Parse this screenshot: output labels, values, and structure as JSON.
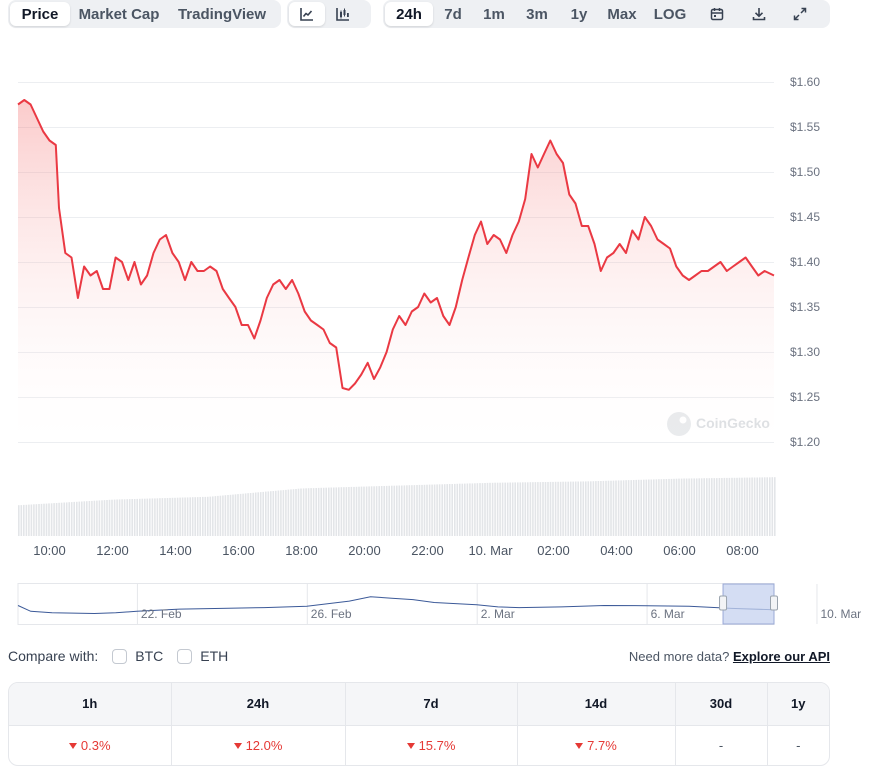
{
  "toolbar": {
    "metric_tabs": [
      "Price",
      "Market Cap",
      "TradingView"
    ],
    "range_tabs": [
      "24h",
      "7d",
      "1m",
      "3m",
      "1y",
      "Max",
      "LOG"
    ],
    "active_metric": "Price",
    "active_range": "24h",
    "chart_type_icons": [
      "line-chart-icon",
      "candlestick-icon"
    ],
    "tool_icons": [
      "calendar-icon",
      "download-icon",
      "expand-icon"
    ]
  },
  "watermark": "CoinGecko",
  "colors": {
    "line": "#ea3943",
    "accent_down": "#e53935",
    "navigator": "#3b5998"
  },
  "chart_data": {
    "type": "area",
    "y_ticks": [
      "$1.60",
      "$1.55",
      "$1.50",
      "$1.45",
      "$1.40",
      "$1.35",
      "$1.30",
      "$1.25",
      "$1.20"
    ],
    "ylim": [
      1.2,
      1.6
    ],
    "x_ticks": [
      "10:00",
      "12:00",
      "14:00",
      "16:00",
      "18:00",
      "20:00",
      "22:00",
      "10. Mar",
      "02:00",
      "04:00",
      "06:00",
      "08:00"
    ],
    "xlim_hours": [
      9.0,
      33.0
    ],
    "x_unit": "hours since 00:00 on 9 Mar",
    "series": [
      {
        "points": [
          [
            9.0,
            1.575
          ],
          [
            9.2,
            1.58
          ],
          [
            9.4,
            1.575
          ],
          [
            9.6,
            1.56
          ],
          [
            9.8,
            1.545
          ],
          [
            10.0,
            1.535
          ],
          [
            10.2,
            1.53
          ],
          [
            10.3,
            1.46
          ],
          [
            10.5,
            1.41
          ],
          [
            10.7,
            1.405
          ],
          [
            10.9,
            1.36
          ],
          [
            11.1,
            1.395
          ],
          [
            11.3,
            1.385
          ],
          [
            11.5,
            1.39
          ],
          [
            11.7,
            1.37
          ],
          [
            11.9,
            1.37
          ],
          [
            12.1,
            1.405
          ],
          [
            12.3,
            1.4
          ],
          [
            12.5,
            1.38
          ],
          [
            12.7,
            1.4
          ],
          [
            12.9,
            1.375
          ],
          [
            13.1,
            1.385
          ],
          [
            13.3,
            1.41
          ],
          [
            13.5,
            1.425
          ],
          [
            13.7,
            1.43
          ],
          [
            13.9,
            1.41
          ],
          [
            14.1,
            1.4
          ],
          [
            14.3,
            1.38
          ],
          [
            14.5,
            1.4
          ],
          [
            14.7,
            1.39
          ],
          [
            14.9,
            1.39
          ],
          [
            15.1,
            1.395
          ],
          [
            15.3,
            1.39
          ],
          [
            15.5,
            1.37
          ],
          [
            15.7,
            1.36
          ],
          [
            15.9,
            1.35
          ],
          [
            16.1,
            1.33
          ],
          [
            16.3,
            1.33
          ],
          [
            16.5,
            1.315
          ],
          [
            16.7,
            1.335
          ],
          [
            16.9,
            1.36
          ],
          [
            17.1,
            1.375
          ],
          [
            17.3,
            1.38
          ],
          [
            17.5,
            1.37
          ],
          [
            17.7,
            1.38
          ],
          [
            17.9,
            1.365
          ],
          [
            18.1,
            1.345
          ],
          [
            18.3,
            1.335
          ],
          [
            18.5,
            1.33
          ],
          [
            18.7,
            1.325
          ],
          [
            18.9,
            1.31
          ],
          [
            19.1,
            1.305
          ],
          [
            19.3,
            1.26
          ],
          [
            19.5,
            1.258
          ],
          [
            19.7,
            1.265
          ],
          [
            19.9,
            1.275
          ],
          [
            20.1,
            1.288
          ],
          [
            20.3,
            1.27
          ],
          [
            20.5,
            1.283
          ],
          [
            20.7,
            1.3
          ],
          [
            20.9,
            1.325
          ],
          [
            21.1,
            1.34
          ],
          [
            21.3,
            1.33
          ],
          [
            21.5,
            1.345
          ],
          [
            21.7,
            1.35
          ],
          [
            21.9,
            1.365
          ],
          [
            22.1,
            1.355
          ],
          [
            22.3,
            1.36
          ],
          [
            22.5,
            1.34
          ],
          [
            22.7,
            1.33
          ],
          [
            22.9,
            1.35
          ],
          [
            23.1,
            1.38
          ],
          [
            23.3,
            1.405
          ],
          [
            23.5,
            1.43
          ],
          [
            23.7,
            1.445
          ],
          [
            23.9,
            1.42
          ],
          [
            24.1,
            1.43
          ],
          [
            24.3,
            1.425
          ],
          [
            24.5,
            1.41
          ],
          [
            24.7,
            1.43
          ],
          [
            24.9,
            1.445
          ],
          [
            25.1,
            1.47
          ],
          [
            25.3,
            1.52
          ],
          [
            25.5,
            1.505
          ],
          [
            25.7,
            1.52
          ],
          [
            25.9,
            1.535
          ],
          [
            26.1,
            1.52
          ],
          [
            26.3,
            1.51
          ],
          [
            26.5,
            1.475
          ],
          [
            26.7,
            1.465
          ],
          [
            26.9,
            1.44
          ],
          [
            27.1,
            1.44
          ],
          [
            27.3,
            1.42
          ],
          [
            27.5,
            1.39
          ],
          [
            27.7,
            1.405
          ],
          [
            27.9,
            1.41
          ],
          [
            28.1,
            1.42
          ],
          [
            28.3,
            1.41
          ],
          [
            28.5,
            1.435
          ],
          [
            28.7,
            1.425
          ],
          [
            28.9,
            1.45
          ],
          [
            29.1,
            1.44
          ],
          [
            29.3,
            1.425
          ],
          [
            29.5,
            1.42
          ],
          [
            29.7,
            1.415
          ],
          [
            29.9,
            1.395
          ],
          [
            30.1,
            1.385
          ],
          [
            30.3,
            1.38
          ],
          [
            30.5,
            1.385
          ],
          [
            30.7,
            1.39
          ],
          [
            30.9,
            1.39
          ],
          [
            31.1,
            1.395
          ],
          [
            31.3,
            1.4
          ],
          [
            31.5,
            1.39
          ],
          [
            31.7,
            1.395
          ],
          [
            31.9,
            1.4
          ],
          [
            32.1,
            1.405
          ],
          [
            32.3,
            1.395
          ],
          [
            32.5,
            1.385
          ],
          [
            32.7,
            1.39
          ],
          [
            33.0,
            1.385
          ]
        ]
      }
    ],
    "volume": {
      "x": [
        9.0,
        12.0,
        15.0,
        18.0,
        21.0,
        24.0,
        27.0,
        30.0,
        33.0
      ],
      "values": [
        22,
        26,
        28,
        34,
        36,
        38,
        39,
        41,
        42
      ]
    },
    "navigator": {
      "x_ticks": [
        "22. Feb",
        "26. Feb",
        "2. Mar",
        "6. Mar",
        "10. Mar"
      ],
      "xlim_days": [
        -1.8,
        16.0
      ],
      "x_unit": "days since 21 Feb",
      "points": [
        [
          -1.8,
          1.38
        ],
        [
          -1.5,
          1.34
        ],
        [
          -1.0,
          1.33
        ],
        [
          0.0,
          1.325
        ],
        [
          0.5,
          1.33
        ],
        [
          1.0,
          1.34
        ],
        [
          2.0,
          1.355
        ],
        [
          3.0,
          1.36
        ],
        [
          4.0,
          1.365
        ],
        [
          5.0,
          1.375
        ],
        [
          6.0,
          1.41
        ],
        [
          6.5,
          1.44
        ],
        [
          7.0,
          1.43
        ],
        [
          7.5,
          1.42
        ],
        [
          8.0,
          1.4
        ],
        [
          9.0,
          1.385
        ],
        [
          9.5,
          1.37
        ],
        [
          10.0,
          1.365
        ],
        [
          11.0,
          1.37
        ],
        [
          12.0,
          1.38
        ],
        [
          13.0,
          1.378
        ],
        [
          14.0,
          1.375
        ],
        [
          15.0,
          1.36
        ],
        [
          16.0,
          1.35
        ]
      ],
      "ylim": [
        1.28,
        1.5
      ],
      "selection_days": [
        14.8,
        16.0
      ]
    }
  },
  "compare": {
    "label": "Compare with:",
    "options": [
      "BTC",
      "ETH"
    ],
    "more_text": "Need more data?",
    "more_link": "Explore our API"
  },
  "changes": {
    "headers": [
      "1h",
      "24h",
      "7d",
      "14d",
      "30d",
      "1y"
    ],
    "values": [
      "0.3%",
      "12.0%",
      "15.7%",
      "7.7%",
      "-",
      "-"
    ],
    "direction": [
      "down",
      "down",
      "down",
      "down",
      "none",
      "none"
    ]
  }
}
